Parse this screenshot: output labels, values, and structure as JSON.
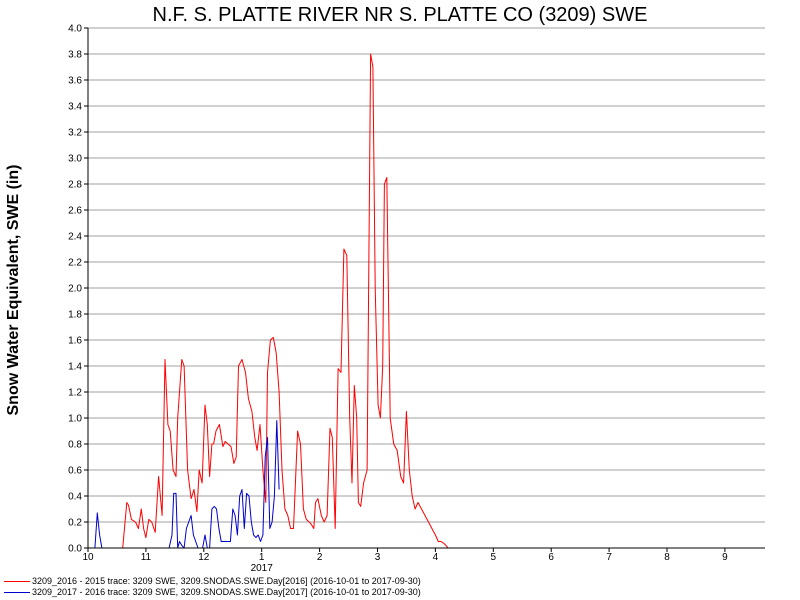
{
  "chart_data": {
    "type": "line",
    "title": "N.F. S. PLATTE RIVER NR S. PLATTE CO (3209) SWE",
    "ylabel": "Snow Water Equivalent, SWE (in)",
    "xlabel": "",
    "ylim": [
      0,
      4.0
    ],
    "xlim": [
      10.0,
      11.0
    ],
    "x_tick_labels": [
      "10",
      "11",
      "12",
      "1",
      "2",
      "3",
      "4",
      "5",
      "6",
      "7",
      "8",
      "9"
    ],
    "x_year_label": "2017",
    "y_tick_labels": [
      "0.0",
      "0.2",
      "0.4",
      "0.6",
      "0.8",
      "1.0",
      "1.2",
      "1.4",
      "1.6",
      "1.8",
      "2.0",
      "2.2",
      "2.4",
      "2.6",
      "2.8",
      "3.0",
      "3.2",
      "3.4",
      "3.6",
      "3.8",
      "4.0"
    ],
    "grid": "horizontal",
    "legend_placement": "bottom-left",
    "series": [
      {
        "name": "3209_2016 - 2015 trace: 3209 SWE, 3209.SNODAS.SWE.Day[2016] (2016-10-01 to 2017-09-30)",
        "color": "#ff0000",
        "x": [
          0.0,
          0.6,
          0.67,
          0.7,
          0.75,
          0.82,
          0.87,
          0.92,
          0.96,
          1.0,
          1.05,
          1.1,
          1.16,
          1.22,
          1.28,
          1.33,
          1.38,
          1.42,
          1.47,
          1.52,
          1.55,
          1.58,
          1.62,
          1.66,
          1.72,
          1.78,
          1.83,
          1.88,
          1.92,
          1.97,
          2.02,
          2.06,
          2.1,
          2.14,
          2.17,
          2.21,
          2.27,
          2.33,
          2.37,
          2.42,
          2.47,
          2.52,
          2.56,
          2.6,
          2.66,
          2.72,
          2.77,
          2.83,
          2.88,
          2.92,
          2.97,
          3.02,
          3.07,
          3.1,
          3.15,
          3.2,
          3.25,
          3.3,
          3.35,
          3.4,
          3.45,
          3.5,
          3.55,
          3.62,
          3.67,
          3.72,
          3.77,
          3.82,
          3.86,
          3.9,
          3.93,
          3.97,
          4.03,
          4.08,
          4.13,
          4.18,
          4.22,
          4.27,
          4.32,
          4.37,
          4.42,
          4.47,
          4.52,
          4.56,
          4.6,
          4.64,
          4.67,
          4.71,
          4.76,
          4.82,
          4.88,
          4.92,
          4.96,
          5.01,
          5.05,
          5.09,
          5.12,
          5.16,
          5.22,
          5.28,
          5.34,
          5.4,
          5.45,
          5.5,
          5.55,
          5.6,
          5.65,
          5.7,
          5.76,
          5.82,
          5.88,
          5.94,
          6.0,
          6.05,
          6.1,
          6.16,
          6.22,
          6.28,
          6.34,
          6.4,
          6.45,
          6.5
        ],
        "y": [
          0.0,
          0.0,
          0.35,
          0.33,
          0.22,
          0.2,
          0.15,
          0.3,
          0.15,
          0.08,
          0.22,
          0.2,
          0.12,
          0.55,
          0.25,
          1.45,
          0.95,
          0.9,
          0.6,
          0.55,
          1.0,
          1.2,
          1.45,
          1.4,
          0.6,
          0.38,
          0.45,
          0.28,
          0.6,
          0.5,
          1.1,
          0.95,
          0.55,
          0.8,
          0.8,
          0.9,
          0.95,
          0.78,
          0.82,
          0.8,
          0.78,
          0.65,
          0.7,
          1.4,
          1.45,
          1.35,
          1.15,
          1.05,
          0.85,
          0.75,
          0.95,
          0.6,
          0.35,
          1.35,
          1.6,
          1.62,
          1.5,
          1.2,
          0.6,
          0.3,
          0.25,
          0.15,
          0.15,
          0.9,
          0.8,
          0.3,
          0.22,
          0.2,
          0.18,
          0.15,
          0.35,
          0.38,
          0.25,
          0.2,
          0.25,
          0.92,
          0.85,
          0.15,
          1.38,
          1.35,
          2.3,
          2.25,
          1.0,
          0.5,
          1.25,
          1.0,
          0.35,
          0.32,
          0.5,
          0.6,
          3.8,
          3.7,
          2.0,
          1.1,
          1.0,
          1.4,
          2.8,
          2.85,
          1.0,
          0.8,
          0.75,
          0.55,
          0.5,
          1.05,
          0.6,
          0.4,
          0.3,
          0.35,
          0.3,
          0.25,
          0.2,
          0.15,
          0.1,
          0.05,
          0.05,
          0.03,
          0.0,
          0.0,
          0.0,
          0.0,
          0.0,
          0.0
        ]
      },
      {
        "name": "3209_2017 - 2016 trace: 3209 SWE, 3209.SNODAS.SWE.Day[2017] (2016-10-01 to 2017-09-30)",
        "color": "#0000cc",
        "x": [
          0.0,
          0.12,
          0.16,
          0.2,
          0.24,
          0.3,
          0.4,
          0.5,
          0.6,
          0.7,
          0.8,
          0.9,
          1.0,
          1.1,
          1.2,
          1.3,
          1.4,
          1.45,
          1.48,
          1.52,
          1.55,
          1.58,
          1.62,
          1.66,
          1.7,
          1.74,
          1.78,
          1.82,
          1.86,
          1.9,
          1.94,
          1.98,
          2.02,
          2.06,
          2.1,
          2.14,
          2.18,
          2.22,
          2.26,
          2.3,
          2.34,
          2.38,
          2.42,
          2.46,
          2.5,
          2.54,
          2.58,
          2.62,
          2.66,
          2.7,
          2.74,
          2.78,
          2.82,
          2.86,
          2.9,
          2.94,
          2.98,
          3.02,
          3.06,
          3.1,
          3.14,
          3.18,
          3.22,
          3.26,
          3.3
        ],
        "y": [
          0.0,
          0.0,
          0.27,
          0.1,
          0.0,
          0.0,
          0.0,
          0.0,
          0.0,
          0.0,
          0.0,
          0.0,
          0.0,
          0.0,
          0.0,
          0.0,
          0.0,
          0.1,
          0.42,
          0.42,
          0.0,
          0.05,
          0.02,
          0.0,
          0.15,
          0.2,
          0.25,
          0.1,
          0.05,
          0.0,
          0.0,
          0.0,
          0.1,
          0.0,
          0.0,
          0.3,
          0.32,
          0.3,
          0.15,
          0.05,
          0.05,
          0.05,
          0.05,
          0.05,
          0.3,
          0.25,
          0.1,
          0.4,
          0.45,
          0.15,
          0.42,
          0.4,
          0.2,
          0.1,
          0.08,
          0.1,
          0.05,
          0.1,
          0.7,
          0.85,
          0.15,
          0.2,
          0.4,
          0.98,
          0.45
        ]
      }
    ]
  }
}
